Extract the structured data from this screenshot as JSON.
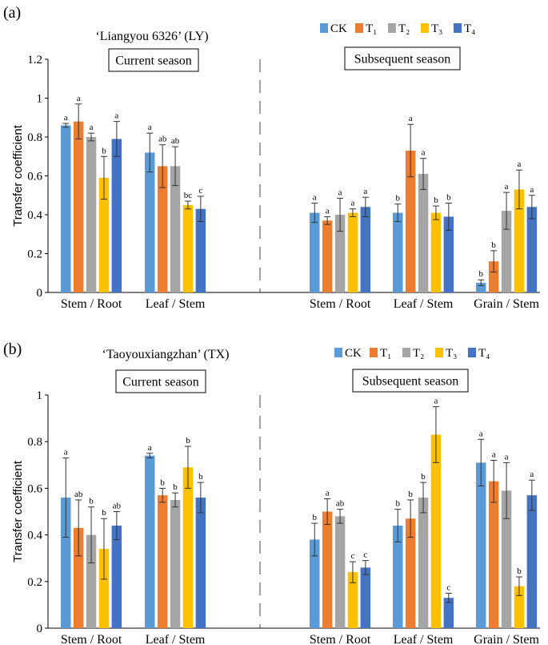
{
  "legend": {
    "series": [
      {
        "key": "CK",
        "label": "CK",
        "color": "#5B9BD5"
      },
      {
        "key": "T1",
        "label": "T₁",
        "color": "#ED7D31"
      },
      {
        "key": "T2",
        "label": "T₂",
        "color": "#A5A5A5"
      },
      {
        "key": "T3",
        "label": "T₃",
        "color": "#FFC000"
      },
      {
        "key": "T4",
        "label": "T₄",
        "color": "#4472C4"
      }
    ]
  },
  "chart_data": [
    {
      "type": "bar",
      "panel_label": "(a)",
      "title": "‘Liangyou 6326’ (LY)",
      "season_labels": {
        "current": "Current season",
        "subsequent": "Subsequent season"
      },
      "ylabel": "Transfer coefficient",
      "ylim": [
        0,
        1.2
      ],
      "yticks": [
        0,
        0.2,
        0.4,
        0.6,
        0.8,
        1,
        1.2
      ],
      "ytick_labels": [
        "0",
        "0.2",
        "0.4",
        "0.6",
        "0.8",
        "1",
        "1.2"
      ],
      "categories": [
        "Stem / Root",
        "Leaf / Stem",
        "Stem / Root",
        "Leaf / Stem",
        "Grain / Stem"
      ],
      "category_season": [
        "current",
        "current",
        "subsequent",
        "subsequent",
        "subsequent"
      ],
      "series": [
        {
          "name": "CK",
          "values": [
            0.86,
            0.72,
            0.41,
            0.41,
            0.05
          ],
          "errors": [
            0.01,
            0.1,
            0.05,
            0.045,
            0.015
          ],
          "letters": [
            "a",
            "a",
            "a",
            "b",
            "b"
          ]
        },
        {
          "name": "T₁",
          "values": [
            0.88,
            0.65,
            0.37,
            0.73,
            0.16
          ],
          "errors": [
            0.09,
            0.11,
            0.02,
            0.135,
            0.055
          ],
          "letters": [
            "a",
            "ab",
            "a",
            "a",
            "b"
          ]
        },
        {
          "name": "T₂",
          "values": [
            0.8,
            0.65,
            0.4,
            0.61,
            0.42
          ],
          "errors": [
            0.02,
            0.1,
            0.085,
            0.08,
            0.095
          ],
          "letters": [
            "a",
            "ab",
            "a",
            "a",
            "a"
          ]
        },
        {
          "name": "T₃",
          "values": [
            0.59,
            0.45,
            0.41,
            0.41,
            0.53
          ],
          "errors": [
            0.11,
            0.02,
            0.02,
            0.035,
            0.1
          ],
          "letters": [
            "b",
            "bc",
            "a",
            "b",
            "a"
          ]
        },
        {
          "name": "T₄",
          "values": [
            0.79,
            0.43,
            0.44,
            0.39,
            0.44
          ],
          "errors": [
            0.09,
            0.065,
            0.05,
            0.07,
            0.06
          ],
          "letters": [
            "a",
            "c",
            "a",
            "b",
            "a"
          ]
        }
      ]
    },
    {
      "type": "bar",
      "panel_label": "(b)",
      "title": "‘Taoyouxiangzhan’ (TX)",
      "season_labels": {
        "current": "Current season",
        "subsequent": "Subsequent season"
      },
      "ylabel": "Transfer coefficient",
      "ylim": [
        0,
        1
      ],
      "yticks": [
        0,
        0.2,
        0.4,
        0.6,
        0.8,
        1
      ],
      "ytick_labels": [
        "0",
        "0.2",
        "0.4",
        "0.6",
        "0.8",
        "1"
      ],
      "categories": [
        "Stem / Root",
        "Leaf / Stem",
        "Stem / Root",
        "Leaf / Stem",
        "Grain / Stem"
      ],
      "category_season": [
        "current",
        "current",
        "subsequent",
        "subsequent",
        "subsequent"
      ],
      "series": [
        {
          "name": "CK",
          "values": [
            0.56,
            0.74,
            0.38,
            0.44,
            0.71
          ],
          "errors": [
            0.17,
            0.01,
            0.07,
            0.07,
            0.1
          ],
          "letters": [
            "a",
            "a",
            "b",
            "b",
            "a"
          ]
        },
        {
          "name": "T₁",
          "values": [
            0.43,
            0.57,
            0.5,
            0.47,
            0.63
          ],
          "errors": [
            0.12,
            0.03,
            0.055,
            0.08,
            0.09
          ],
          "letters": [
            "ab",
            "b",
            "a",
            "b",
            "a"
          ]
        },
        {
          "name": "T₂",
          "values": [
            0.4,
            0.55,
            0.48,
            0.56,
            0.59
          ],
          "errors": [
            0.12,
            0.03,
            0.03,
            0.065,
            0.12
          ],
          "letters": [
            "b",
            "b",
            "ab",
            "b",
            "a"
          ]
        },
        {
          "name": "T₃",
          "values": [
            0.34,
            0.69,
            0.24,
            0.83,
            0.18
          ],
          "errors": [
            0.13,
            0.09,
            0.045,
            0.12,
            0.04
          ],
          "letters": [
            "b",
            "b",
            "c",
            "a",
            "b"
          ]
        },
        {
          "name": "T₄",
          "values": [
            0.44,
            0.56,
            0.26,
            0.13,
            0.57
          ],
          "errors": [
            0.06,
            0.065,
            0.03,
            0.02,
            0.065
          ],
          "letters": [
            "ab",
            "b",
            "c",
            "c",
            "a"
          ]
        }
      ]
    }
  ]
}
